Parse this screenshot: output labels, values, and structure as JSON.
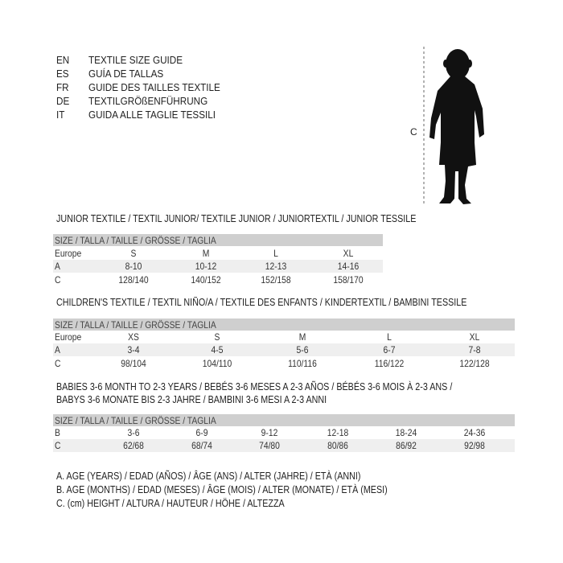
{
  "languages": [
    {
      "code": "EN",
      "text": "TEXTILE SIZE GUIDE"
    },
    {
      "code": "ES",
      "text": "GUÍA DE TALLAS"
    },
    {
      "code": "FR",
      "text": "GUIDE DES TAILLES TEXTILE"
    },
    {
      "code": "DE",
      "text": "TEXTILGRÖßENFÜHRUNG"
    },
    {
      "code": "IT",
      "text": "GUIDA ALLE TAGLIE TESSILI"
    }
  ],
  "figure": {
    "measure_label": "C",
    "icon": "child-silhouette-icon"
  },
  "junior": {
    "title": "JUNIOR TEXTILE / TEXTIL JUNIOR/ TEXTILE JUNIOR / JUNIORTEXTIL / JUNIOR TESSILE",
    "header": "SIZE / TALLA / TAILLE / GRÖSSE / TAGLIA",
    "rows": [
      {
        "label": "Europe",
        "values": [
          "S",
          "M",
          "L",
          "XL"
        ]
      },
      {
        "label": "A",
        "values": [
          "8-10",
          "10-12",
          "12-13",
          "14-16"
        ]
      },
      {
        "label": "C",
        "values": [
          "128/140",
          "140/152",
          "152/158",
          "158/170"
        ]
      }
    ]
  },
  "children": {
    "title": "CHILDREN'S TEXTILE / TEXTIL NIÑO/A / TEXTILE DES ENFANTS / KINDERTEXTIL / BAMBINI TESSILE",
    "header": "SIZE / TALLA / TAILLE / GRÖSSE / TAGLIA",
    "rows": [
      {
        "label": "Europe",
        "values": [
          "XS",
          "S",
          "M",
          "L",
          "XL"
        ]
      },
      {
        "label": "A",
        "values": [
          "3-4",
          "4-5",
          "5-6",
          "6-7",
          "7-8"
        ]
      },
      {
        "label": "C",
        "values": [
          "98/104",
          "104/110",
          "110/116",
          "116/122",
          "122/128"
        ]
      }
    ]
  },
  "babies": {
    "title_line1": "BABIES 3-6 MONTH TO 2-3 YEARS / BEBÉS 3-6 MESES A 2-3 AÑOS / BÉBÉS 3-6 MOIS À 2-3 ANS /",
    "title_line2": "BABYS 3-6 MONATE BIS 2-3 JAHRE / BAMBINI 3-6 MESI A 2-3 ANNI",
    "header": "SIZE / TALLA / TAILLE / GRÖSSE / TAGLIA",
    "rows": [
      {
        "label": "B",
        "values": [
          "3-6",
          "6-9",
          "9-12",
          "12-18",
          "18-24",
          "24-36"
        ]
      },
      {
        "label": "C",
        "values": [
          "62/68",
          "68/74",
          "74/80",
          "80/86",
          "86/92",
          "92/98"
        ]
      }
    ]
  },
  "legend": [
    "A. AGE (YEARS) / EDAD (AÑOS) / ÂGE (ANS) / ALTER (JAHRE) / ETÀ (ANNI)",
    "B. AGE (MONTHS) / EDAD (MESES) / ÂGE (MOIS) / ALTER (MONATE) / ETÀ (MESI)",
    "C. (cm) HEIGHT / ALTURA / HAUTEUR / HÖHE / ALTEZZA"
  ]
}
